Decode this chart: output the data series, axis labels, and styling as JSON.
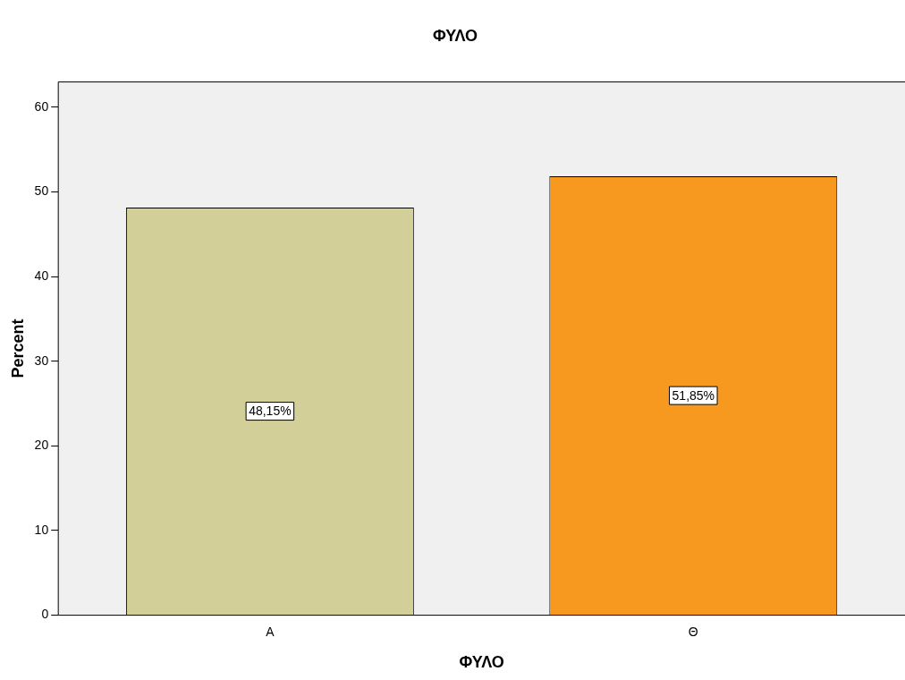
{
  "chart_data": {
    "type": "bar",
    "title": "ΦΥΛΟ",
    "xlabel": "ΦΥΛΟ",
    "ylabel": "Percent",
    "categories": [
      "Α",
      "Θ"
    ],
    "values": [
      48.15,
      51.85
    ],
    "colors": [
      "#d3cf98",
      "#f7991f"
    ],
    "value_labels": [
      "48,15%",
      "51,85%"
    ],
    "ylim": [
      0,
      63
    ],
    "yticks": [
      0,
      10,
      20,
      30,
      40,
      50,
      60
    ],
    "grid": false,
    "legend": false
  }
}
